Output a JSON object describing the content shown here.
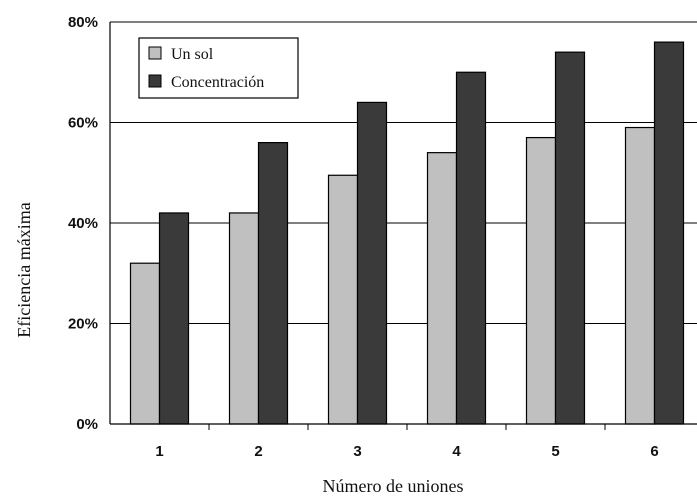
{
  "chart_data": {
    "type": "bar",
    "categories": [
      "1",
      "2",
      "3",
      "4",
      "5",
      "6"
    ],
    "series": [
      {
        "name": "Un sol",
        "values": [
          32,
          42,
          49.5,
          54,
          57,
          59
        ],
        "color": "#c0c0c0"
      },
      {
        "name": "Concentración",
        "values": [
          42,
          56,
          64,
          70,
          74,
          76
        ],
        "color": "#3a3a3a"
      }
    ],
    "xlabel": "Número de uniones",
    "ylabel": "Eficiencia máxima",
    "ylim": [
      0,
      80
    ],
    "yticks": [
      "0%",
      "20%",
      "40%",
      "60%",
      "80%"
    ],
    "grid": true,
    "legend": "top-left"
  }
}
